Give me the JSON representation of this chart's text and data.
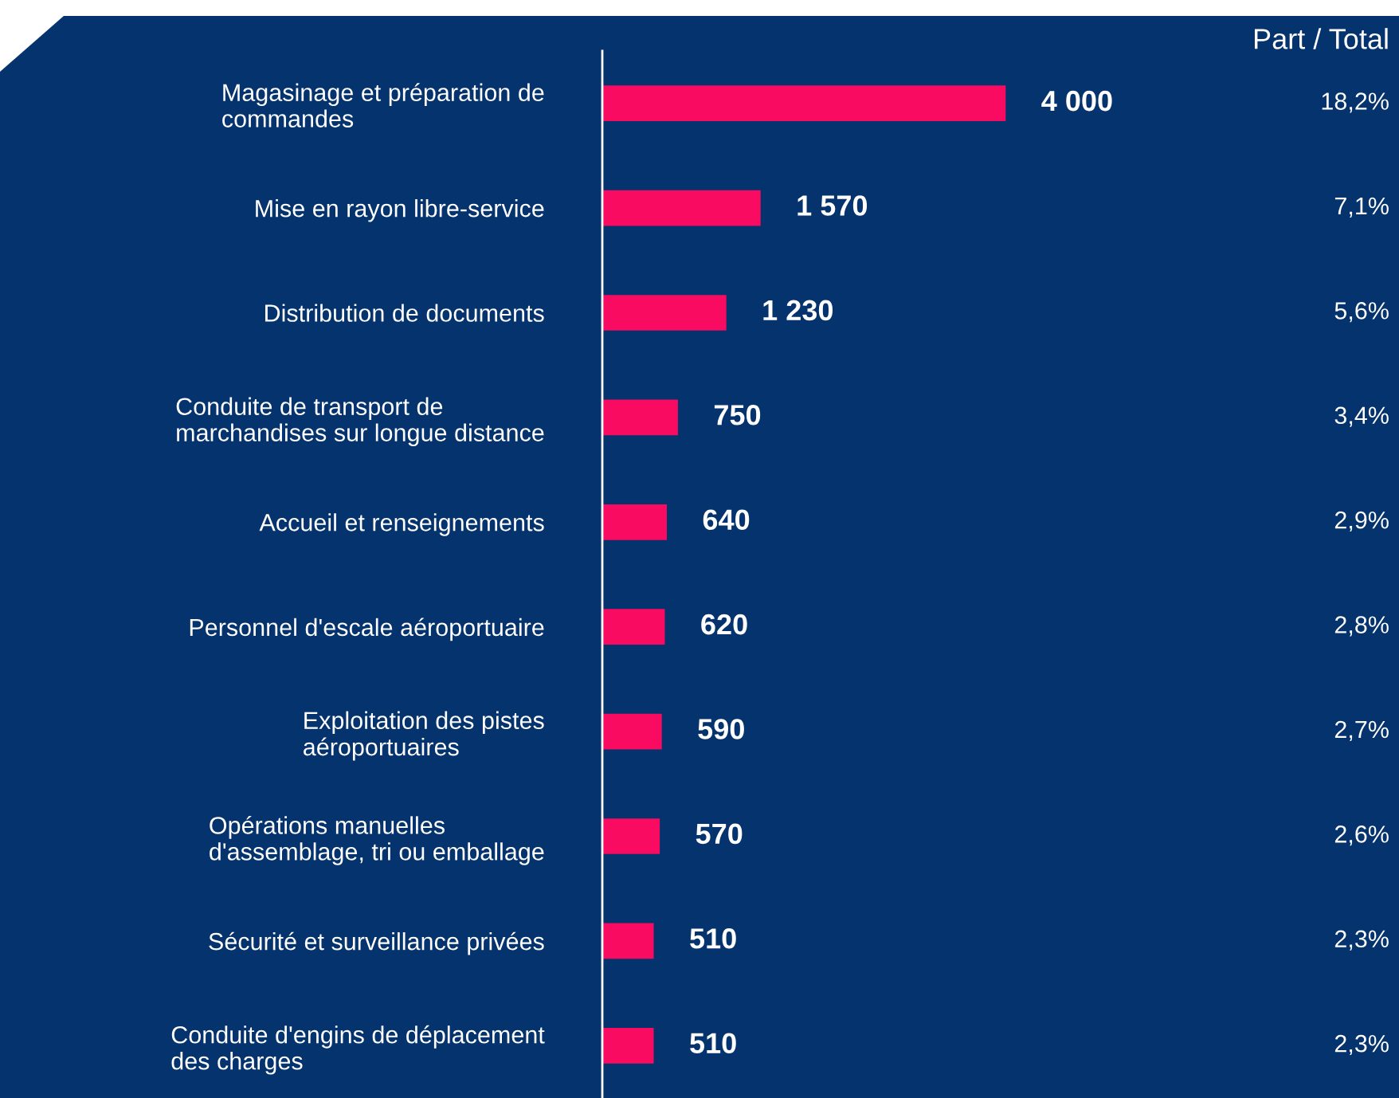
{
  "chart_data": {
    "type": "bar",
    "orientation": "horizontal",
    "categories": [
      "Magasinage et préparation de\ncommandes",
      "Mise en rayon libre-service",
      "Distribution de documents",
      "Conduite de transport de\nmarchandises sur longue distance",
      "Accueil et renseignements",
      "Personnel d'escale aéroportuaire",
      "Exploitation des pistes\naéroportuaires",
      "Opérations manuelles\nd'assemblage, tri ou emballage",
      "Sécurité et surveillance privées",
      "Conduite d'engins de déplacement\ndes charges"
    ],
    "values": [
      4000,
      1570,
      1230,
      750,
      640,
      620,
      590,
      570,
      510,
      510
    ],
    "value_labels": [
      "4 000",
      "1 570",
      "1 230",
      "750",
      "640",
      "620",
      "590",
      "570",
      "510",
      "510"
    ],
    "color": "#fa0b62",
    "annotations": [
      "Part / Total",
      "18,2%",
      "7,1%",
      "5,6%",
      "3,4%",
      "2,9%",
      "2,8%",
      "2,7%",
      "2,6%",
      "2,3%",
      "2,3%"
    ],
    "grid": false,
    "legend": false
  }
}
